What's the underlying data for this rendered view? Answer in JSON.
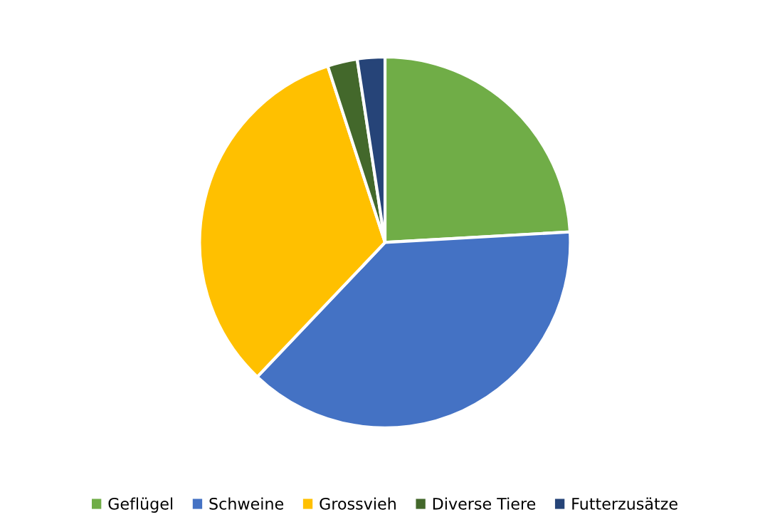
{
  "chart_data": {
    "type": "pie",
    "categories": [
      "Geflügel",
      "Schweine",
      "Grossvieh",
      "Diverse Tiere",
      "Futterzusätze"
    ],
    "values": [
      24.1,
      38.0,
      32.9,
      2.6,
      2.4
    ],
    "colors": [
      "#70ad47",
      "#4472c4",
      "#ffc000",
      "#43682b",
      "#264478"
    ],
    "legend": "bottom"
  }
}
